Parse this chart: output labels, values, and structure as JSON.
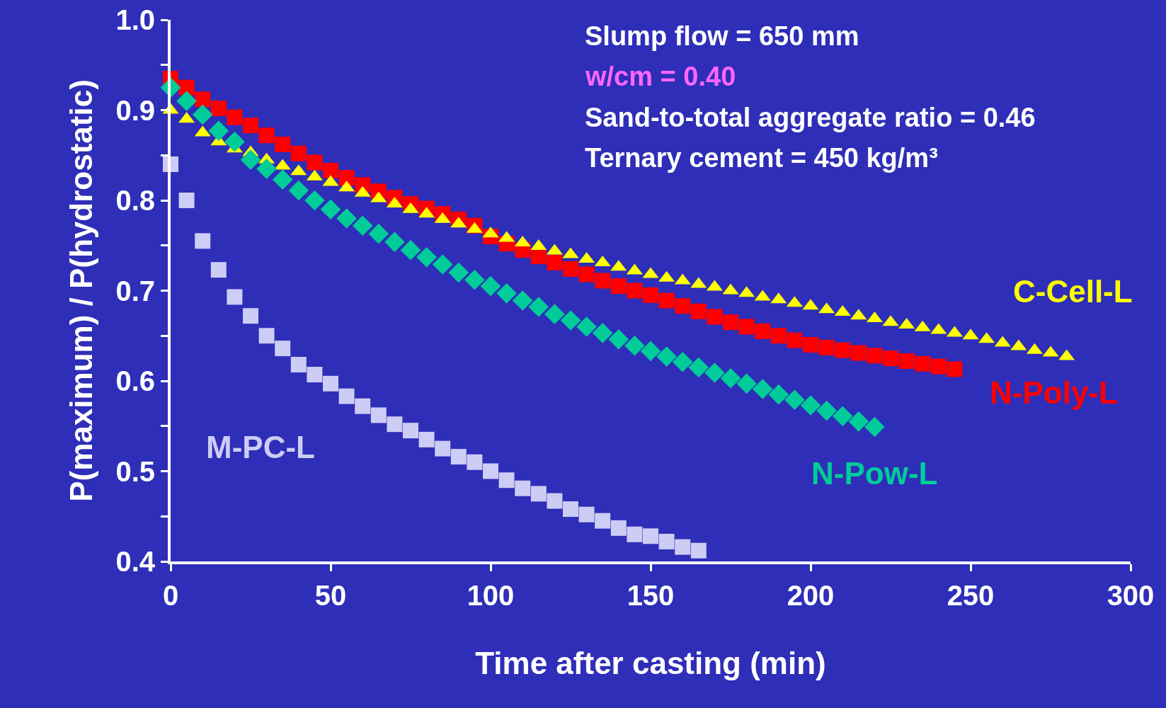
{
  "chart_data": {
    "type": "scatter",
    "xlabel": "Time after casting (min)",
    "ylabel": "P(maximum) / P(hydrostatic)",
    "annotations": [
      "Slump flow = 650 mm",
      "w/cm = 0.40",
      "Sand-to-total aggregate ratio = 0.46",
      "Ternary cement = 450 kg/m³"
    ],
    "xlim": [
      0,
      300
    ],
    "xticks": [
      0,
      50,
      100,
      150,
      200,
      250,
      300
    ],
    "ylim": [
      0.4,
      1.0
    ],
    "yticks": [
      {
        "value": 0.4,
        "label": "0.4"
      },
      {
        "value": 0.45,
        "label": null
      },
      {
        "value": 0.5,
        "label": "0.5"
      },
      {
        "value": 0.55,
        "label": null
      },
      {
        "value": 0.6,
        "label": "0.6"
      },
      {
        "value": 0.65,
        "label": null
      },
      {
        "value": 0.7,
        "label": "0.7"
      },
      {
        "value": 0.75,
        "label": null
      },
      {
        "value": 0.8,
        "label": "0.8"
      },
      {
        "value": 0.85,
        "label": null
      },
      {
        "value": 0.9,
        "label": "0.9"
      },
      {
        "value": 0.95,
        "label": null
      },
      {
        "value": 1.0,
        "label": "1.0"
      }
    ],
    "grid": false,
    "legend": false,
    "series": [
      {
        "name": "C-Cell-L",
        "color": "#ffff00",
        "marker": "triangle",
        "x": [
          0,
          5,
          10,
          15,
          20,
          25,
          30,
          35,
          40,
          45,
          50,
          55,
          60,
          65,
          70,
          75,
          80,
          85,
          90,
          95,
          100,
          105,
          110,
          115,
          120,
          125,
          130,
          135,
          140,
          145,
          150,
          155,
          160,
          165,
          170,
          175,
          180,
          185,
          190,
          195,
          200,
          205,
          210,
          215,
          220,
          225,
          230,
          235,
          240,
          245,
          250,
          255,
          260,
          265,
          270,
          275,
          280
        ],
        "values": [
          0.9,
          0.89,
          0.875,
          0.865,
          0.857,
          0.853,
          0.845,
          0.838,
          0.832,
          0.826,
          0.82,
          0.814,
          0.808,
          0.802,
          0.796,
          0.79,
          0.785,
          0.779,
          0.774,
          0.768,
          0.763,
          0.758,
          0.753,
          0.749,
          0.744,
          0.74,
          0.735,
          0.731,
          0.726,
          0.722,
          0.718,
          0.714,
          0.711,
          0.707,
          0.704,
          0.7,
          0.697,
          0.693,
          0.69,
          0.686,
          0.683,
          0.679,
          0.676,
          0.672,
          0.669,
          0.665,
          0.662,
          0.659,
          0.656,
          0.653,
          0.65,
          0.646,
          0.642,
          0.638,
          0.634,
          0.631,
          0.627
        ]
      },
      {
        "name": "N-Poly-L",
        "color": "#ff0000",
        "marker": "square",
        "x": [
          0,
          5,
          10,
          15,
          20,
          25,
          30,
          35,
          40,
          45,
          50,
          55,
          60,
          65,
          70,
          75,
          80,
          85,
          90,
          95,
          100,
          105,
          110,
          115,
          120,
          125,
          130,
          135,
          140,
          145,
          150,
          155,
          160,
          165,
          170,
          175,
          180,
          185,
          190,
          195,
          200,
          205,
          210,
          215,
          220,
          225,
          230,
          235,
          240,
          245
        ],
        "values": [
          0.935,
          0.925,
          0.912,
          0.902,
          0.892,
          0.883,
          0.872,
          0.862,
          0.852,
          0.842,
          0.833,
          0.825,
          0.817,
          0.81,
          0.803,
          0.796,
          0.791,
          0.785,
          0.779,
          0.772,
          0.76,
          0.752,
          0.745,
          0.738,
          0.731,
          0.724,
          0.718,
          0.711,
          0.705,
          0.7,
          0.695,
          0.689,
          0.683,
          0.677,
          0.671,
          0.665,
          0.66,
          0.655,
          0.65,
          0.645,
          0.64,
          0.637,
          0.634,
          0.631,
          0.628,
          0.625,
          0.622,
          0.619,
          0.616,
          0.613
        ]
      },
      {
        "name": "N-Pow-L",
        "color": "#00cc99",
        "marker": "diamond",
        "x": [
          0,
          5,
          10,
          15,
          20,
          25,
          30,
          35,
          40,
          45,
          50,
          55,
          60,
          65,
          70,
          75,
          80,
          85,
          90,
          95,
          100,
          105,
          110,
          115,
          120,
          125,
          130,
          135,
          140,
          145,
          150,
          155,
          160,
          165,
          170,
          175,
          180,
          185,
          190,
          195,
          200,
          205,
          210,
          215,
          220
        ],
        "values": [
          0.925,
          0.91,
          0.895,
          0.877,
          0.865,
          0.845,
          0.835,
          0.823,
          0.811,
          0.8,
          0.79,
          0.78,
          0.772,
          0.763,
          0.754,
          0.745,
          0.737,
          0.729,
          0.72,
          0.712,
          0.705,
          0.697,
          0.689,
          0.682,
          0.674,
          0.667,
          0.66,
          0.653,
          0.646,
          0.639,
          0.633,
          0.627,
          0.621,
          0.615,
          0.609,
          0.603,
          0.597,
          0.591,
          0.585,
          0.579,
          0.573,
          0.567,
          0.561,
          0.555,
          0.549
        ]
      },
      {
        "name": "M-PC-L",
        "color": "#ccccf5",
        "marker": "square",
        "x": [
          0,
          5,
          10,
          15,
          20,
          25,
          30,
          35,
          40,
          45,
          50,
          55,
          60,
          65,
          70,
          75,
          80,
          85,
          90,
          95,
          100,
          105,
          110,
          115,
          120,
          125,
          130,
          135,
          140,
          145,
          150,
          155,
          160,
          165
        ],
        "values": [
          0.84,
          0.8,
          0.755,
          0.723,
          0.693,
          0.672,
          0.65,
          0.636,
          0.618,
          0.607,
          0.597,
          0.583,
          0.572,
          0.562,
          0.552,
          0.545,
          0.535,
          0.525,
          0.516,
          0.51,
          0.5,
          0.49,
          0.481,
          0.475,
          0.467,
          0.458,
          0.452,
          0.445,
          0.437,
          0.43,
          0.428,
          0.422,
          0.416,
          0.412
        ]
      }
    ]
  }
}
